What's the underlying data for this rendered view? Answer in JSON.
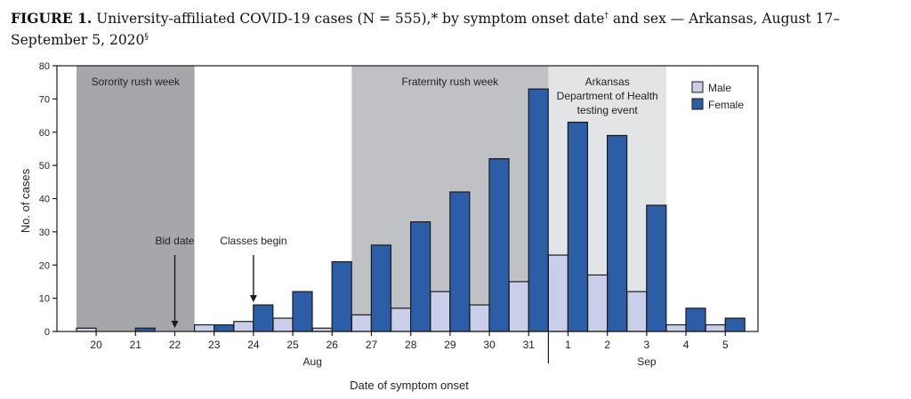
{
  "figure": {
    "label": "FIGURE 1.",
    "title": "University-affiliated COVID-19 cases (N = 555),* by symptom onset date",
    "dagger": "†",
    "title_cont": " and sex — Arkansas, August 17–September 5, 2020",
    "section": "§"
  },
  "chart_data": {
    "type": "bar",
    "xlabel": "Date of symptom onset",
    "ylabel": "No. of cases",
    "ylim": [
      0,
      80
    ],
    "yticks": [
      0,
      10,
      20,
      30,
      40,
      50,
      60,
      70,
      80
    ],
    "categories": [
      "20",
      "21",
      "22",
      "23",
      "24",
      "25",
      "26",
      "27",
      "28",
      "29",
      "30",
      "31",
      "1",
      "2",
      "3",
      "4",
      "5"
    ],
    "month_labels": [
      {
        "label": "Aug",
        "range": [
          "20",
          "31"
        ]
      },
      {
        "label": "Sep",
        "range": [
          "1",
          "5"
        ]
      }
    ],
    "series": [
      {
        "name": "Male",
        "color": "#c9cfe8",
        "values": [
          1,
          0,
          0,
          2,
          3,
          4,
          1,
          5,
          7,
          12,
          8,
          15,
          23,
          17,
          12,
          2,
          2
        ]
      },
      {
        "name": "Female",
        "color": "#2c5ea8",
        "values": [
          0,
          1,
          0,
          2,
          8,
          12,
          21,
          26,
          33,
          42,
          52,
          73,
          63,
          59,
          38,
          7,
          4
        ]
      }
    ],
    "legend_position": "top-right",
    "shaded_periods": [
      {
        "label": [
          "Sorority rush week"
        ],
        "start": "20",
        "end": "22",
        "color": "#a6a7aa"
      },
      {
        "label": [
          "Fraternity rush week"
        ],
        "start": "27",
        "end": "31",
        "color": "#c0c1c4"
      },
      {
        "label": [
          "Arkansas",
          "Department of Health",
          "testing event"
        ],
        "start": "1",
        "end": "3",
        "color": "#e3e4e6"
      }
    ],
    "annotations": [
      {
        "label": "Bid date",
        "category": "22"
      },
      {
        "label": "Classes begin",
        "category": "24"
      }
    ]
  }
}
